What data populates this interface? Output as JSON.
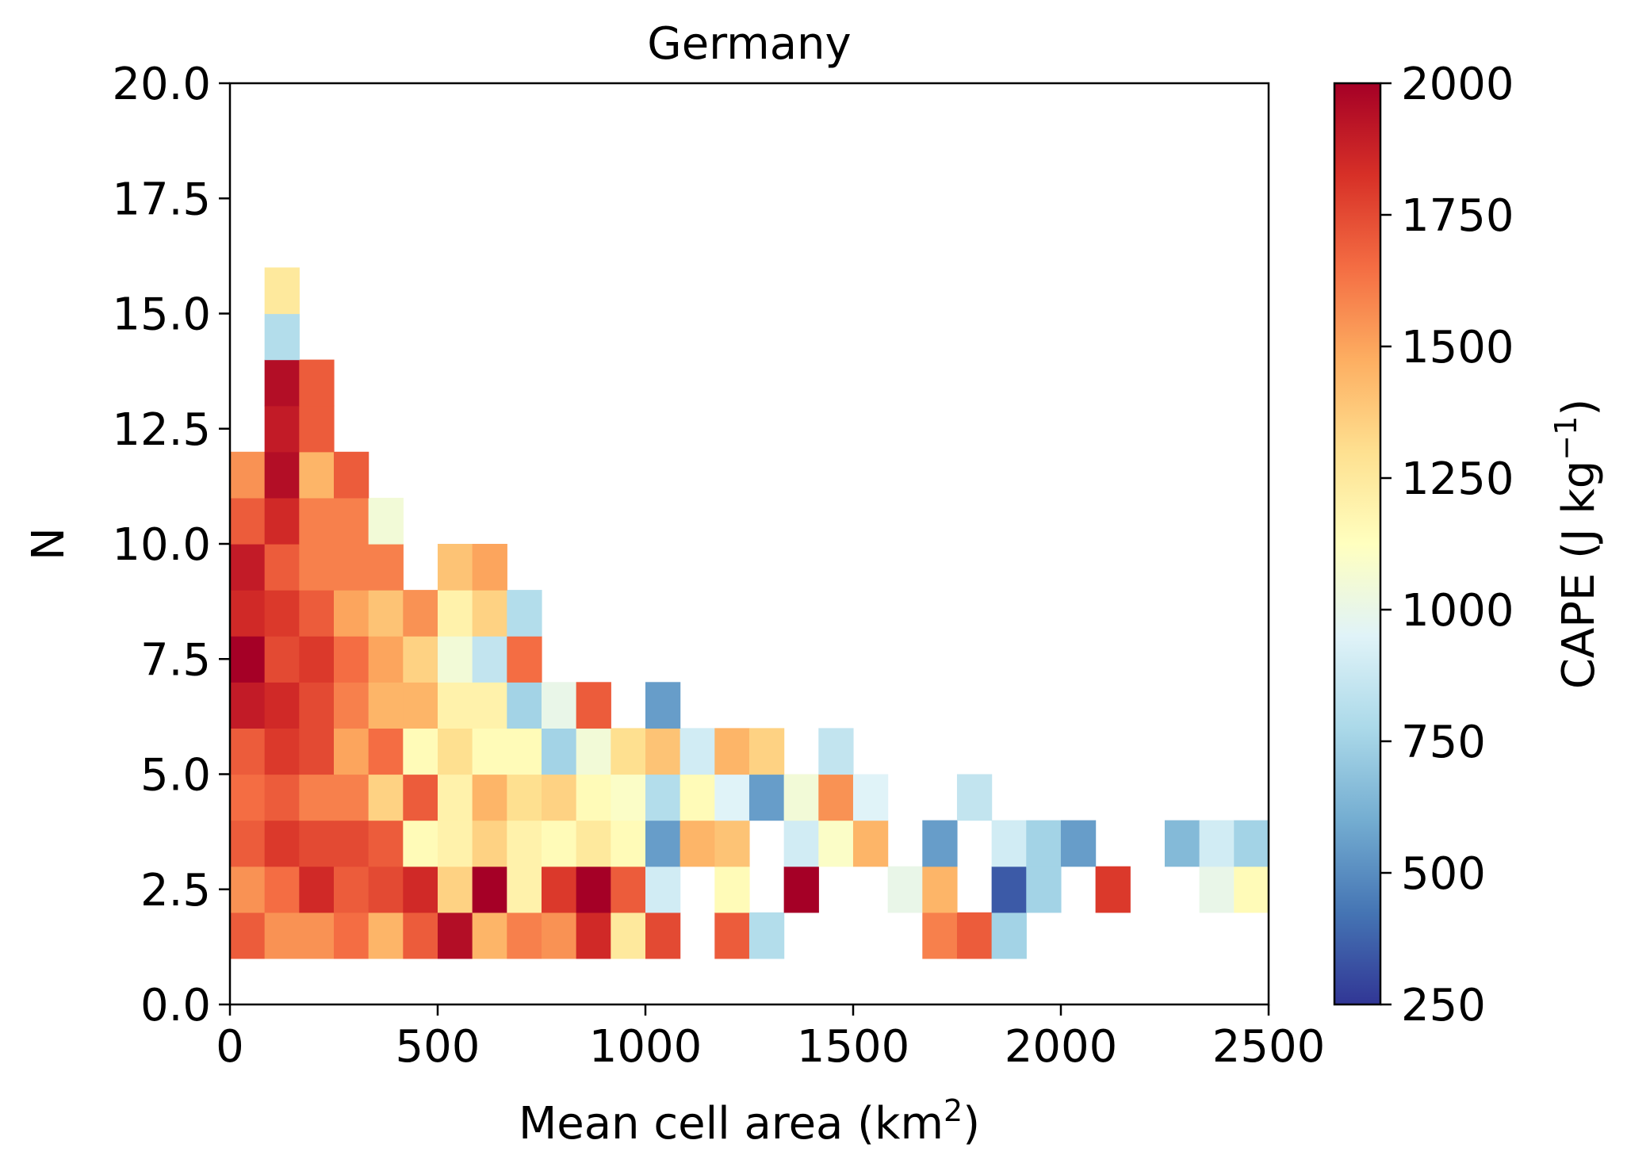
{
  "chart_data": {
    "type": "heatmap",
    "title": "Germany",
    "xlabel": "Mean cell area (km",
    "xlabel_sup": "2",
    "xlabel_end": ")",
    "ylabel": "N",
    "xlim": [
      0,
      2500
    ],
    "ylim": [
      0,
      20
    ],
    "xticks": [
      "0",
      "500",
      "1000",
      "1500",
      "2000",
      "2500"
    ],
    "yticks": [
      "0.0",
      "2.5",
      "5.0",
      "7.5",
      "10.0",
      "12.5",
      "15.0",
      "17.5",
      "20.0"
    ],
    "bin_width_x": 83.33,
    "bin_height_y": 1,
    "colorbar": {
      "label": "CAPE (J kg",
      "label_sup": "−1",
      "label_end": ")",
      "range": [
        250,
        2000
      ],
      "ticks": [
        "250",
        "500",
        "750",
        "1000",
        "1250",
        "1500",
        "1750",
        "2000"
      ],
      "colormap": "RdYlBu_r"
    },
    "cells": [
      {
        "xi": 0,
        "n": 1,
        "cape": 1700
      },
      {
        "xi": 1,
        "n": 1,
        "cape": 1550
      },
      {
        "xi": 2,
        "n": 1,
        "cape": 1550
      },
      {
        "xi": 3,
        "n": 1,
        "cape": 1650
      },
      {
        "xi": 4,
        "n": 1,
        "cape": 1450
      },
      {
        "xi": 5,
        "n": 1,
        "cape": 1700
      },
      {
        "xi": 6,
        "n": 1,
        "cape": 1950
      },
      {
        "xi": 7,
        "n": 1,
        "cape": 1450
      },
      {
        "xi": 8,
        "n": 1,
        "cape": 1600
      },
      {
        "xi": 9,
        "n": 1,
        "cape": 1550
      },
      {
        "xi": 10,
        "n": 1,
        "cape": 1850
      },
      {
        "xi": 11,
        "n": 1,
        "cape": 1250
      },
      {
        "xi": 12,
        "n": 1,
        "cape": 1750
      },
      {
        "xi": 14,
        "n": 1,
        "cape": 1700
      },
      {
        "xi": 15,
        "n": 1,
        "cape": 800
      },
      {
        "xi": 20,
        "n": 1,
        "cape": 1600
      },
      {
        "xi": 21,
        "n": 1,
        "cape": 1700
      },
      {
        "xi": 22,
        "n": 1,
        "cape": 750
      },
      {
        "xi": 0,
        "n": 2,
        "cape": 1550
      },
      {
        "xi": 1,
        "n": 2,
        "cape": 1650
      },
      {
        "xi": 2,
        "n": 2,
        "cape": 1850
      },
      {
        "xi": 3,
        "n": 2,
        "cape": 1700
      },
      {
        "xi": 4,
        "n": 2,
        "cape": 1750
      },
      {
        "xi": 5,
        "n": 2,
        "cape": 1850
      },
      {
        "xi": 6,
        "n": 2,
        "cape": 1350
      },
      {
        "xi": 7,
        "n": 2,
        "cape": 2000
      },
      {
        "xi": 8,
        "n": 2,
        "cape": 1200
      },
      {
        "xi": 9,
        "n": 2,
        "cape": 1800
      },
      {
        "xi": 10,
        "n": 2,
        "cape": 2000
      },
      {
        "xi": 11,
        "n": 2,
        "cape": 1700
      },
      {
        "xi": 12,
        "n": 2,
        "cape": 900
      },
      {
        "xi": 14,
        "n": 2,
        "cape": 1150
      },
      {
        "xi": 16,
        "n": 2,
        "cape": 2000
      },
      {
        "xi": 19,
        "n": 2,
        "cape": 1000
      },
      {
        "xi": 20,
        "n": 2,
        "cape": 1450
      },
      {
        "xi": 22,
        "n": 2,
        "cape": 350
      },
      {
        "xi": 23,
        "n": 2,
        "cape": 750
      },
      {
        "xi": 25,
        "n": 2,
        "cape": 1800
      },
      {
        "xi": 28,
        "n": 2,
        "cape": 1000
      },
      {
        "xi": 29,
        "n": 2,
        "cape": 1150
      },
      {
        "xi": 0,
        "n": 3,
        "cape": 1700
      },
      {
        "xi": 1,
        "n": 3,
        "cape": 1800
      },
      {
        "xi": 2,
        "n": 3,
        "cape": 1750
      },
      {
        "xi": 3,
        "n": 3,
        "cape": 1750
      },
      {
        "xi": 4,
        "n": 3,
        "cape": 1700
      },
      {
        "xi": 5,
        "n": 3,
        "cape": 1150
      },
      {
        "xi": 6,
        "n": 3,
        "cape": 1200
      },
      {
        "xi": 7,
        "n": 3,
        "cape": 1350
      },
      {
        "xi": 8,
        "n": 3,
        "cape": 1200
      },
      {
        "xi": 9,
        "n": 3,
        "cape": 1150
      },
      {
        "xi": 10,
        "n": 3,
        "cape": 1250
      },
      {
        "xi": 11,
        "n": 3,
        "cape": 1150
      },
      {
        "xi": 12,
        "n": 3,
        "cape": 550
      },
      {
        "xi": 13,
        "n": 3,
        "cape": 1450
      },
      {
        "xi": 14,
        "n": 3,
        "cape": 1400
      },
      {
        "xi": 16,
        "n": 3,
        "cape": 900
      },
      {
        "xi": 17,
        "n": 3,
        "cape": 1100
      },
      {
        "xi": 18,
        "n": 3,
        "cape": 1450
      },
      {
        "xi": 20,
        "n": 3,
        "cape": 550
      },
      {
        "xi": 22,
        "n": 3,
        "cape": 900
      },
      {
        "xi": 23,
        "n": 3,
        "cape": 750
      },
      {
        "xi": 24,
        "n": 3,
        "cape": 550
      },
      {
        "xi": 27,
        "n": 3,
        "cape": 650
      },
      {
        "xi": 28,
        "n": 3,
        "cape": 900
      },
      {
        "xi": 29,
        "n": 3,
        "cape": 750
      },
      {
        "xi": 0,
        "n": 4,
        "cape": 1650
      },
      {
        "xi": 1,
        "n": 4,
        "cape": 1700
      },
      {
        "xi": 2,
        "n": 4,
        "cape": 1600
      },
      {
        "xi": 3,
        "n": 4,
        "cape": 1600
      },
      {
        "xi": 4,
        "n": 4,
        "cape": 1350
      },
      {
        "xi": 5,
        "n": 4,
        "cape": 1700
      },
      {
        "xi": 6,
        "n": 4,
        "cape": 1200
      },
      {
        "xi": 7,
        "n": 4,
        "cape": 1450
      },
      {
        "xi": 8,
        "n": 4,
        "cape": 1300
      },
      {
        "xi": 9,
        "n": 4,
        "cape": 1350
      },
      {
        "xi": 10,
        "n": 4,
        "cape": 1150
      },
      {
        "xi": 11,
        "n": 4,
        "cape": 1100
      },
      {
        "xi": 12,
        "n": 4,
        "cape": 800
      },
      {
        "xi": 13,
        "n": 4,
        "cape": 1150
      },
      {
        "xi": 14,
        "n": 4,
        "cape": 950
      },
      {
        "xi": 15,
        "n": 4,
        "cape": 550
      },
      {
        "xi": 16,
        "n": 4,
        "cape": 1050
      },
      {
        "xi": 17,
        "n": 4,
        "cape": 1550
      },
      {
        "xi": 18,
        "n": 4,
        "cape": 950
      },
      {
        "xi": 21,
        "n": 4,
        "cape": 850
      },
      {
        "xi": 0,
        "n": 5,
        "cape": 1700
      },
      {
        "xi": 1,
        "n": 5,
        "cape": 1800
      },
      {
        "xi": 2,
        "n": 5,
        "cape": 1750
      },
      {
        "xi": 3,
        "n": 5,
        "cape": 1500
      },
      {
        "xi": 4,
        "n": 5,
        "cape": 1650
      },
      {
        "xi": 5,
        "n": 5,
        "cape": 1150
      },
      {
        "xi": 6,
        "n": 5,
        "cape": 1300
      },
      {
        "xi": 7,
        "n": 5,
        "cape": 1150
      },
      {
        "xi": 8,
        "n": 5,
        "cape": 1150
      },
      {
        "xi": 9,
        "n": 5,
        "cape": 750
      },
      {
        "xi": 10,
        "n": 5,
        "cape": 1050
      },
      {
        "xi": 11,
        "n": 5,
        "cape": 1300
      },
      {
        "xi": 12,
        "n": 5,
        "cape": 1400
      },
      {
        "xi": 13,
        "n": 5,
        "cape": 900
      },
      {
        "xi": 14,
        "n": 5,
        "cape": 1450
      },
      {
        "xi": 15,
        "n": 5,
        "cape": 1350
      },
      {
        "xi": 17,
        "n": 5,
        "cape": 850
      },
      {
        "xi": 0,
        "n": 6,
        "cape": 1900
      },
      {
        "xi": 1,
        "n": 6,
        "cape": 1850
      },
      {
        "xi": 2,
        "n": 6,
        "cape": 1750
      },
      {
        "xi": 3,
        "n": 6,
        "cape": 1600
      },
      {
        "xi": 4,
        "n": 6,
        "cape": 1450
      },
      {
        "xi": 5,
        "n": 6,
        "cape": 1450
      },
      {
        "xi": 6,
        "n": 6,
        "cape": 1200
      },
      {
        "xi": 7,
        "n": 6,
        "cape": 1200
      },
      {
        "xi": 8,
        "n": 6,
        "cape": 750
      },
      {
        "xi": 9,
        "n": 6,
        "cape": 1000
      },
      {
        "xi": 10,
        "n": 6,
        "cape": 1700
      },
      {
        "xi": 12,
        "n": 6,
        "cape": 550
      },
      {
        "xi": 0,
        "n": 7,
        "cape": 2000
      },
      {
        "xi": 1,
        "n": 7,
        "cape": 1750
      },
      {
        "xi": 2,
        "n": 7,
        "cape": 1800
      },
      {
        "xi": 3,
        "n": 7,
        "cape": 1650
      },
      {
        "xi": 4,
        "n": 7,
        "cape": 1500
      },
      {
        "xi": 5,
        "n": 7,
        "cape": 1350
      },
      {
        "xi": 6,
        "n": 7,
        "cape": 1050
      },
      {
        "xi": 7,
        "n": 7,
        "cape": 850
      },
      {
        "xi": 8,
        "n": 7,
        "cape": 1650
      },
      {
        "xi": 0,
        "n": 8,
        "cape": 1850
      },
      {
        "xi": 1,
        "n": 8,
        "cape": 1800
      },
      {
        "xi": 2,
        "n": 8,
        "cape": 1700
      },
      {
        "xi": 3,
        "n": 8,
        "cape": 1500
      },
      {
        "xi": 4,
        "n": 8,
        "cape": 1400
      },
      {
        "xi": 5,
        "n": 8,
        "cape": 1550
      },
      {
        "xi": 6,
        "n": 8,
        "cape": 1200
      },
      {
        "xi": 7,
        "n": 8,
        "cape": 1350
      },
      {
        "xi": 8,
        "n": 8,
        "cape": 800
      },
      {
        "xi": 0,
        "n": 9,
        "cape": 1900
      },
      {
        "xi": 1,
        "n": 9,
        "cape": 1700
      },
      {
        "xi": 2,
        "n": 9,
        "cape": 1600
      },
      {
        "xi": 3,
        "n": 9,
        "cape": 1600
      },
      {
        "xi": 4,
        "n": 9,
        "cape": 1600
      },
      {
        "xi": 6,
        "n": 9,
        "cape": 1400
      },
      {
        "xi": 7,
        "n": 9,
        "cape": 1500
      },
      {
        "xi": 0,
        "n": 10,
        "cape": 1700
      },
      {
        "xi": 1,
        "n": 10,
        "cape": 1850
      },
      {
        "xi": 2,
        "n": 10,
        "cape": 1600
      },
      {
        "xi": 3,
        "n": 10,
        "cape": 1600
      },
      {
        "xi": 4,
        "n": 10,
        "cape": 1050
      },
      {
        "xi": 0,
        "n": 11,
        "cape": 1550
      },
      {
        "xi": 1,
        "n": 11,
        "cape": 1950
      },
      {
        "xi": 2,
        "n": 11,
        "cape": 1450
      },
      {
        "xi": 3,
        "n": 11,
        "cape": 1700
      },
      {
        "xi": 1,
        "n": 12,
        "cape": 1900
      },
      {
        "xi": 2,
        "n": 12,
        "cape": 1700
      },
      {
        "xi": 1,
        "n": 13,
        "cape": 1950
      },
      {
        "xi": 2,
        "n": 13,
        "cape": 1700
      },
      {
        "xi": 1,
        "n": 14,
        "cape": 800
      },
      {
        "xi": 1,
        "n": 15,
        "cape": 1250
      }
    ]
  }
}
